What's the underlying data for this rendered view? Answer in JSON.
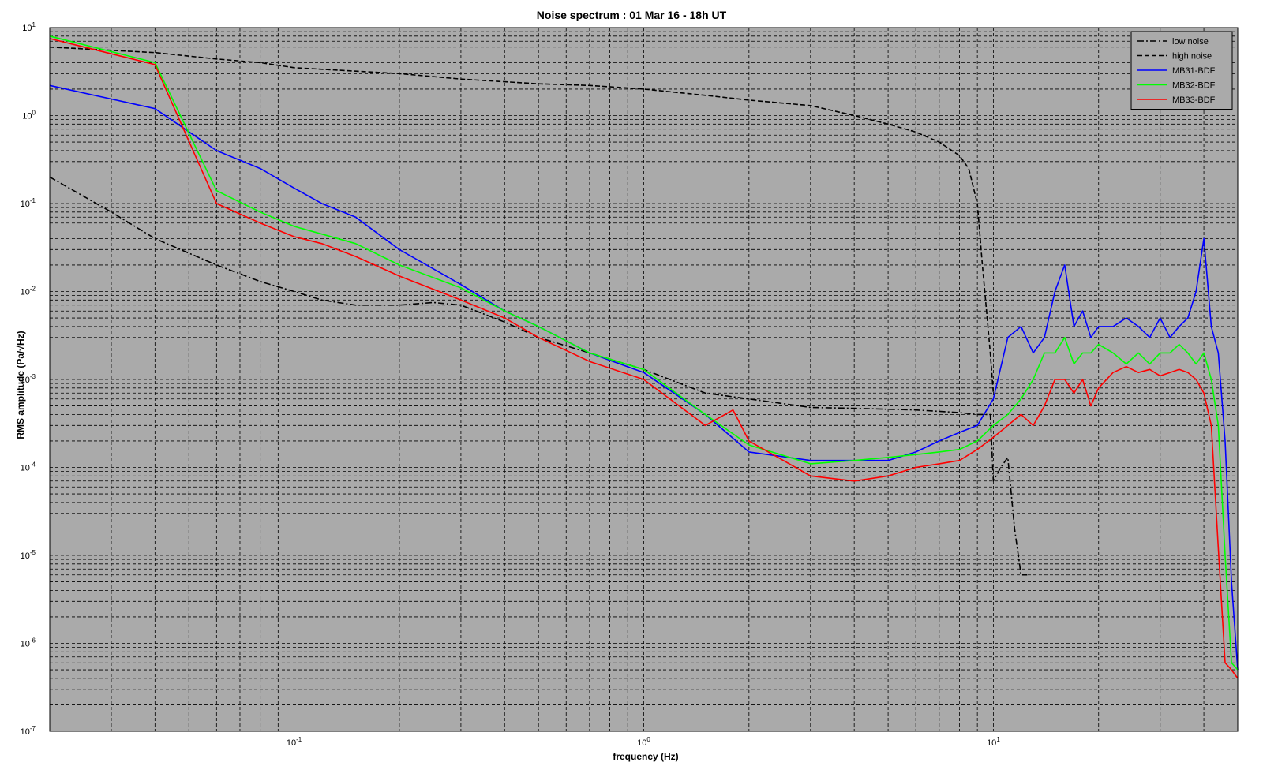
{
  "chart_data": {
    "type": "line",
    "title": "Noise spectrum : 01 Mar 16 - 18h UT",
    "xlabel": "frequency (Hz)",
    "ylabel": "RMS amplitude (Pa/√Hz)",
    "xscale": "log",
    "yscale": "log",
    "xlim": [
      0.02,
      50
    ],
    "ylim": [
      1e-07,
      10
    ],
    "grid": true,
    "legend_position": "top-right",
    "background_color": "#aaaaaa",
    "x_ticks": [
      {
        "base": "10",
        "exp": "-1",
        "value": 0.1
      },
      {
        "base": "10",
        "exp": "0",
        "value": 1
      },
      {
        "base": "10",
        "exp": "1",
        "value": 10
      }
    ],
    "y_ticks": [
      {
        "base": "10",
        "exp": "1",
        "value": 10
      },
      {
        "base": "10",
        "exp": "0",
        "value": 1
      },
      {
        "base": "10",
        "exp": "-1",
        "value": 0.1
      },
      {
        "base": "10",
        "exp": "-2",
        "value": 0.01
      },
      {
        "base": "10",
        "exp": "-3",
        "value": 0.001
      },
      {
        "base": "10",
        "exp": "-4",
        "value": 0.0001
      },
      {
        "base": "10",
        "exp": "-5",
        "value": 1e-05
      },
      {
        "base": "10",
        "exp": "-6",
        "value": 1e-06
      },
      {
        "base": "10",
        "exp": "-7",
        "value": 1e-07
      }
    ],
    "series": [
      {
        "name": "low noise",
        "color": "#000000",
        "dash": "dashdot",
        "x": [
          0.02,
          0.03,
          0.04,
          0.06,
          0.08,
          0.1,
          0.12,
          0.15,
          0.2,
          0.25,
          0.3,
          0.4,
          0.5,
          0.7,
          1.0,
          1.5,
          2.0,
          3.0,
          4.0,
          6.0,
          8.0,
          9.0,
          9.5,
          9.8,
          10.0,
          10.5,
          11.0,
          11.5,
          12.0,
          12.5
        ],
        "y": [
          0.2,
          0.08,
          0.04,
          0.02,
          0.013,
          0.01,
          0.008,
          0.007,
          0.007,
          0.0075,
          0.007,
          0.0045,
          0.003,
          0.002,
          0.0013,
          0.0007,
          0.0006,
          0.00048,
          0.00047,
          0.00045,
          0.00042,
          0.0004,
          0.0004,
          0.0004,
          7e-05,
          0.0001,
          0.00013,
          2e-05,
          6e-06,
          6e-06
        ]
      },
      {
        "name": "high noise",
        "color": "#000000",
        "dash": "dash",
        "x": [
          0.02,
          0.04,
          0.06,
          0.08,
          0.1,
          0.15,
          0.2,
          0.3,
          0.5,
          0.7,
          1.0,
          1.5,
          2.0,
          3.0,
          4.0,
          5.0,
          6.0,
          7.0,
          8.0,
          8.5,
          9.0,
          9.3,
          9.6,
          9.8,
          10.0
        ],
        "y": [
          6,
          5.2,
          4.4,
          4.0,
          3.5,
          3.2,
          3.0,
          2.6,
          2.3,
          2.2,
          2.0,
          1.7,
          1.5,
          1.3,
          1.0,
          0.8,
          0.65,
          0.5,
          0.35,
          0.25,
          0.1,
          0.02,
          0.005,
          0.002,
          0.0007
        ]
      },
      {
        "name": "MB31-BDF",
        "color": "#0000ff",
        "dash": "solid",
        "x": [
          0.02,
          0.04,
          0.06,
          0.08,
          0.1,
          0.12,
          0.15,
          0.2,
          0.3,
          0.4,
          0.5,
          0.7,
          1.0,
          1.5,
          2.0,
          3.0,
          4.0,
          5.0,
          6.0,
          7.0,
          8.0,
          9.0,
          10.0,
          11.0,
          12.0,
          13.0,
          14.0,
          15.0,
          16.0,
          17.0,
          18.0,
          19.0,
          20.0,
          22.0,
          24.0,
          26.0,
          28.0,
          30.0,
          32.0,
          34.0,
          36.0,
          38.0,
          40.0,
          42.0,
          44.0,
          46.0,
          48.0,
          50.0
        ],
        "y": [
          2.2,
          1.2,
          0.4,
          0.25,
          0.15,
          0.1,
          0.07,
          0.03,
          0.012,
          0.006,
          0.004,
          0.002,
          0.0012,
          0.0004,
          0.00015,
          0.00012,
          0.00012,
          0.00012,
          0.00015,
          0.0002,
          0.00025,
          0.0003,
          0.0006,
          0.003,
          0.004,
          0.002,
          0.003,
          0.01,
          0.02,
          0.004,
          0.006,
          0.003,
          0.004,
          0.004,
          0.005,
          0.004,
          0.003,
          0.005,
          0.003,
          0.004,
          0.005,
          0.01,
          0.04,
          0.004,
          0.002,
          0.0002,
          5e-06,
          5e-07
        ]
      },
      {
        "name": "MB32-BDF",
        "color": "#00ff00",
        "dash": "solid",
        "x": [
          0.02,
          0.04,
          0.06,
          0.08,
          0.1,
          0.12,
          0.15,
          0.2,
          0.3,
          0.4,
          0.5,
          0.7,
          1.0,
          1.5,
          2.0,
          3.0,
          4.0,
          5.0,
          6.0,
          7.0,
          8.0,
          9.0,
          10.0,
          11.0,
          12.0,
          13.0,
          14.0,
          15.0,
          16.0,
          17.0,
          18.0,
          19.0,
          20.0,
          22.0,
          24.0,
          26.0,
          28.0,
          30.0,
          32.0,
          34.0,
          36.0,
          38.0,
          40.0,
          42.0,
          44.0,
          46.0,
          48.0,
          50.0
        ],
        "y": [
          8,
          4,
          0.14,
          0.08,
          0.055,
          0.045,
          0.035,
          0.02,
          0.011,
          0.006,
          0.004,
          0.002,
          0.0013,
          0.0004,
          0.00018,
          0.00011,
          0.00012,
          0.00013,
          0.00014,
          0.00015,
          0.00016,
          0.0002,
          0.0003,
          0.0004,
          0.0006,
          0.001,
          0.002,
          0.002,
          0.003,
          0.0015,
          0.002,
          0.002,
          0.0025,
          0.002,
          0.0015,
          0.002,
          0.0015,
          0.002,
          0.002,
          0.0025,
          0.002,
          0.0015,
          0.002,
          0.001,
          0.0003,
          1e-05,
          6e-07,
          5e-07
        ]
      },
      {
        "name": "MB33-BDF",
        "color": "#ff0000",
        "dash": "solid",
        "x": [
          0.02,
          0.04,
          0.06,
          0.08,
          0.1,
          0.12,
          0.15,
          0.2,
          0.3,
          0.4,
          0.5,
          0.7,
          1.0,
          1.5,
          1.8,
          2.0,
          3.0,
          4.0,
          5.0,
          6.0,
          7.0,
          8.0,
          9.0,
          10.0,
          11.0,
          12.0,
          13.0,
          14.0,
          15.0,
          16.0,
          17.0,
          18.0,
          19.0,
          20.0,
          22.0,
          24.0,
          26.0,
          28.0,
          30.0,
          32.0,
          34.0,
          36.0,
          38.0,
          40.0,
          42.0,
          44.0,
          46.0,
          48.0,
          50.0
        ],
        "y": [
          7.5,
          3.8,
          0.1,
          0.06,
          0.042,
          0.035,
          0.025,
          0.015,
          0.008,
          0.005,
          0.003,
          0.0016,
          0.001,
          0.0003,
          0.00045,
          0.0002,
          8e-05,
          7e-05,
          8e-05,
          0.0001,
          0.00011,
          0.00012,
          0.00016,
          0.00022,
          0.0003,
          0.0004,
          0.0003,
          0.0005,
          0.001,
          0.001,
          0.0007,
          0.001,
          0.0005,
          0.0008,
          0.0012,
          0.0014,
          0.0012,
          0.0013,
          0.0011,
          0.0012,
          0.0013,
          0.0012,
          0.001,
          0.0007,
          0.0003,
          1.2e-05,
          6e-07,
          5e-07,
          4e-07
        ]
      }
    ]
  }
}
